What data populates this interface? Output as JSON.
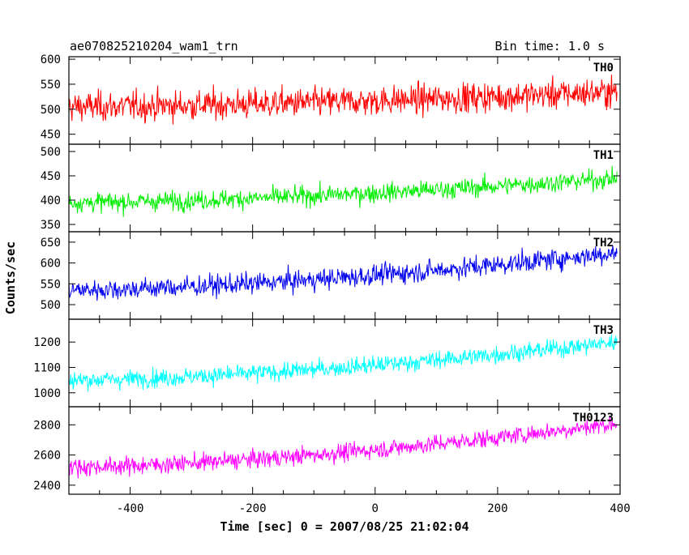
{
  "chart_data": {
    "type": "line",
    "title_left": "ae070825210204_wam1_trn",
    "title_right": "Bin time: 1.0 s",
    "xlabel": "Time [sec] 0 = 2007/08/25 21:02:04",
    "ylabel": "Counts/sec",
    "xlim": [
      -500,
      400
    ],
    "xticks": [
      -400,
      -200,
      0,
      200,
      400
    ],
    "x_range": [
      -505,
      395
    ],
    "bin_time": 1.0,
    "panels": [
      {
        "name": "TH0",
        "color": "#ff0000",
        "ylim": [
          430,
          605
        ],
        "yticks": [
          450,
          500,
          550,
          600
        ],
        "start": 505,
        "end": 535,
        "noise": 38
      },
      {
        "name": "TH1",
        "color": "#00ee00",
        "ylim": [
          335,
          515
        ],
        "yticks": [
          350,
          400,
          450,
          500
        ],
        "start": 395,
        "end": 445,
        "noise": 25
      },
      {
        "name": "TH2",
        "color": "#0000ee",
        "ylim": [
          465,
          675
        ],
        "yticks": [
          500,
          550,
          600,
          650
        ],
        "start": 535,
        "end": 625,
        "noise": 32
      },
      {
        "name": "TH3",
        "color": "#00ffff",
        "ylim": [
          945,
          1290
        ],
        "yticks": [
          1000,
          1100,
          1200
        ],
        "start": 1050,
        "end": 1200,
        "noise": 45
      },
      {
        "name": "TH0123",
        "color": "#ff00ff",
        "ylim": [
          2340,
          2920
        ],
        "yticks": [
          2400,
          2600,
          2800
        ],
        "start": 2520,
        "end": 2810,
        "noise": 75
      }
    ]
  }
}
